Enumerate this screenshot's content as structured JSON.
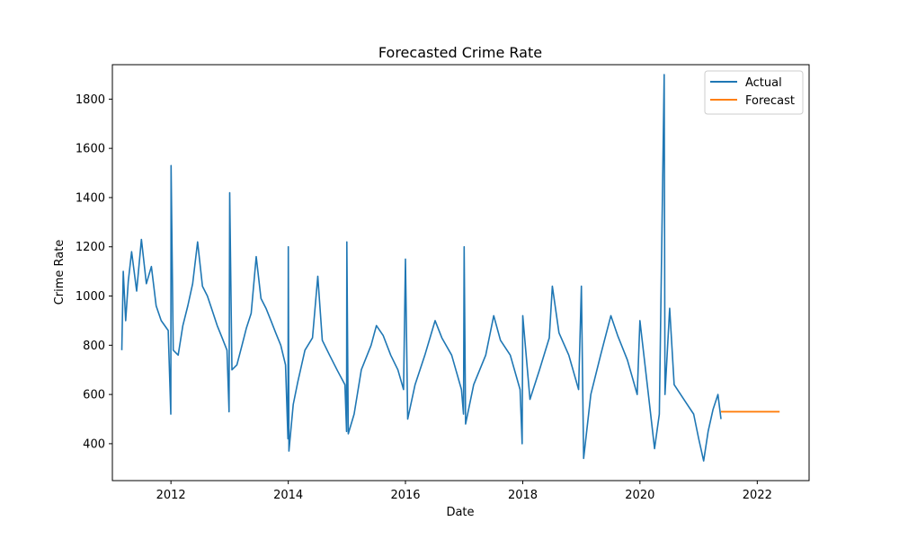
{
  "chart_data": {
    "type": "line",
    "title": "Forecasted Crime Rate",
    "xlabel": "Date",
    "ylabel": "Crime Rate",
    "xlim": [
      "2011-01-01",
      "2022-11-20"
    ],
    "ylim": [
      250,
      1940
    ],
    "x_ticks": [
      "2012",
      "2014",
      "2016",
      "2018",
      "2020",
      "2022"
    ],
    "y_ticks": [
      "400",
      "600",
      "800",
      "1000",
      "1200",
      "1400",
      "1600",
      "1800"
    ],
    "grid": false,
    "legend_position": "top-right",
    "colors": {
      "Actual": "#1f77b4",
      "Forecast": "#ff7f0e"
    },
    "series": [
      {
        "name": "Actual",
        "points": [
          [
            "2011-03-01",
            780
          ],
          [
            "2011-03-10",
            1100
          ],
          [
            "2011-03-25",
            900
          ],
          [
            "2011-04-10",
            1060
          ],
          [
            "2011-05-01",
            1180
          ],
          [
            "2011-06-01",
            1020
          ],
          [
            "2011-07-01",
            1230
          ],
          [
            "2011-08-01",
            1050
          ],
          [
            "2011-09-01",
            1120
          ],
          [
            "2011-10-01",
            960
          ],
          [
            "2011-11-01",
            900
          ],
          [
            "2011-12-15",
            860
          ],
          [
            "2011-12-31",
            520
          ],
          [
            "2012-01-02",
            1530
          ],
          [
            "2012-01-15",
            780
          ],
          [
            "2012-02-15",
            760
          ],
          [
            "2012-03-15",
            880
          ],
          [
            "2012-04-15",
            960
          ],
          [
            "2012-05-15",
            1050
          ],
          [
            "2012-06-15",
            1220
          ],
          [
            "2012-07-15",
            1040
          ],
          [
            "2012-08-15",
            1000
          ],
          [
            "2012-09-15",
            940
          ],
          [
            "2012-10-15",
            880
          ],
          [
            "2012-11-15",
            830
          ],
          [
            "2012-12-15",
            780
          ],
          [
            "2012-12-28",
            530
          ],
          [
            "2013-01-01",
            1420
          ],
          [
            "2013-01-15",
            700
          ],
          [
            "2013-02-15",
            720
          ],
          [
            "2013-03-15",
            790
          ],
          [
            "2013-04-15",
            870
          ],
          [
            "2013-05-15",
            930
          ],
          [
            "2013-06-15",
            1160
          ],
          [
            "2013-07-15",
            990
          ],
          [
            "2013-08-15",
            950
          ],
          [
            "2013-09-15",
            900
          ],
          [
            "2013-10-15",
            850
          ],
          [
            "2013-11-15",
            800
          ],
          [
            "2013-12-15",
            720
          ],
          [
            "2013-12-30",
            420
          ],
          [
            "2014-01-01",
            1200
          ],
          [
            "2014-01-05",
            370
          ],
          [
            "2014-02-01",
            560
          ],
          [
            "2014-03-01",
            650
          ],
          [
            "2014-04-15",
            780
          ],
          [
            "2014-06-01",
            830
          ],
          [
            "2014-07-04",
            1080
          ],
          [
            "2014-08-01",
            820
          ],
          [
            "2014-09-15",
            760
          ],
          [
            "2014-11-01",
            700
          ],
          [
            "2014-12-20",
            640
          ],
          [
            "2014-12-30",
            450
          ],
          [
            "2015-01-01",
            1220
          ],
          [
            "2015-01-10",
            440
          ],
          [
            "2015-02-15",
            520
          ],
          [
            "2015-04-01",
            700
          ],
          [
            "2015-06-01",
            800
          ],
          [
            "2015-07-04",
            880
          ],
          [
            "2015-08-15",
            840
          ],
          [
            "2015-10-01",
            760
          ],
          [
            "2015-11-15",
            700
          ],
          [
            "2015-12-20",
            620
          ],
          [
            "2016-01-01",
            1150
          ],
          [
            "2016-01-15",
            500
          ],
          [
            "2016-03-01",
            640
          ],
          [
            "2016-05-01",
            760
          ],
          [
            "2016-07-04",
            900
          ],
          [
            "2016-08-15",
            830
          ],
          [
            "2016-10-15",
            760
          ],
          [
            "2016-12-15",
            620
          ],
          [
            "2016-12-28",
            520
          ],
          [
            "2017-01-01",
            1200
          ],
          [
            "2017-01-10",
            480
          ],
          [
            "2017-03-01",
            640
          ],
          [
            "2017-05-15",
            760
          ],
          [
            "2017-07-04",
            920
          ],
          [
            "2017-08-15",
            820
          ],
          [
            "2017-10-15",
            760
          ],
          [
            "2017-12-15",
            620
          ],
          [
            "2017-12-28",
            400
          ],
          [
            "2018-01-01",
            920
          ],
          [
            "2018-02-15",
            580
          ],
          [
            "2018-04-15",
            700
          ],
          [
            "2018-06-15",
            830
          ],
          [
            "2018-07-04",
            1040
          ],
          [
            "2018-08-15",
            850
          ],
          [
            "2018-10-15",
            760
          ],
          [
            "2018-12-15",
            620
          ],
          [
            "2019-01-01",
            1040
          ],
          [
            "2019-01-15",
            340
          ],
          [
            "2019-03-01",
            600
          ],
          [
            "2019-05-01",
            760
          ],
          [
            "2019-07-04",
            920
          ],
          [
            "2019-08-15",
            840
          ],
          [
            "2019-10-15",
            740
          ],
          [
            "2019-12-15",
            600
          ],
          [
            "2020-01-01",
            900
          ],
          [
            "2020-03-01",
            560
          ],
          [
            "2020-04-01",
            380
          ],
          [
            "2020-05-01",
            520
          ],
          [
            "2020-05-31",
            1900
          ],
          [
            "2020-06-05",
            600
          ],
          [
            "2020-07-04",
            950
          ],
          [
            "2020-08-01",
            640
          ],
          [
            "2020-10-01",
            580
          ],
          [
            "2020-12-01",
            520
          ],
          [
            "2021-01-01",
            420
          ],
          [
            "2021-02-01",
            330
          ],
          [
            "2021-03-01",
            450
          ],
          [
            "2021-04-01",
            540
          ],
          [
            "2021-05-01",
            600
          ],
          [
            "2021-05-20",
            500
          ]
        ]
      },
      {
        "name": "Forecast",
        "points": [
          [
            "2021-05-20",
            530
          ],
          [
            "2022-05-20",
            530
          ]
        ]
      }
    ]
  }
}
